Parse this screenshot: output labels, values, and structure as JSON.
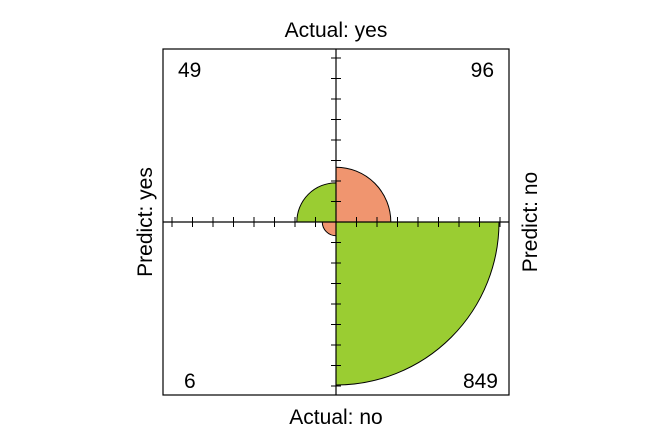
{
  "chart_data": {
    "type": "fourfold",
    "labels": {
      "top": "Actual: yes",
      "bottom": "Actual: no",
      "left": "Predict: yes",
      "right": "Predict: no"
    },
    "cells": [
      {
        "quadrant": "top-left",
        "row": "Predict: yes",
        "col": "Actual: yes",
        "value": 49,
        "label": "49",
        "color": "#9ACD32"
      },
      {
        "quadrant": "top-right",
        "row": "Predict: no",
        "col": "Actual: yes",
        "value": 96,
        "label": "96",
        "color": "#F0956F"
      },
      {
        "quadrant": "bottom-left",
        "row": "Predict: yes",
        "col": "Actual: no",
        "value": 6,
        "label": "6",
        "color": "#F0956F"
      },
      {
        "quadrant": "bottom-right",
        "row": "Predict: no",
        "col": "Actual: no",
        "value": 849,
        "label": "849",
        "color": "#9ACD32"
      }
    ],
    "colors": {
      "positive": "#9ACD32",
      "negative": "#F0956F"
    }
  }
}
